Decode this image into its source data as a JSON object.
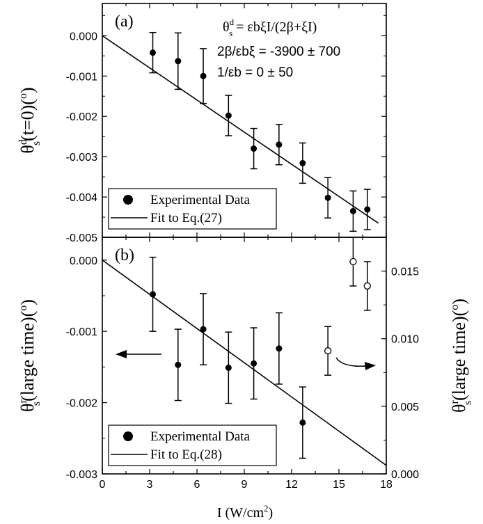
{
  "chart_data": [
    {
      "panel_label": "(a)",
      "type": "scatter",
      "xlim": [
        0,
        18
      ],
      "ylim": [
        -0.005,
        0.0008
      ],
      "yticks": [
        -0.005,
        -0.004,
        -0.003,
        -0.002,
        -0.001,
        0.0
      ],
      "ytick_labels": [
        "-0.005",
        "-0.004",
        "-0.003",
        "-0.002",
        "-0.001",
        "0.000"
      ],
      "ylabel": {
        "main": "θ",
        "sup": "d",
        "sub": "s",
        "rest": "(t=0)(",
        "unit_sup": "o",
        "close": ")"
      },
      "annotations": {
        "formula": {
          "lhs": "θ",
          "lhs_sup": "d",
          "lhs_sub": "s",
          "rhs": "= εbξI/(2β+ξI)"
        },
        "param1": "2β/εbξ = -3900 ± 700",
        "param2": "1/εb = 0 ± 50"
      },
      "series": [
        {
          "name": "Experimental Data",
          "marker": "filled-circle",
          "x": [
            3.2,
            4.8,
            6.4,
            8.0,
            9.6,
            11.2,
            12.7,
            14.3,
            15.9,
            16.8
          ],
          "y": [
            -0.00042,
            -0.00063,
            -0.001,
            -0.00198,
            -0.0028,
            -0.0027,
            -0.00316,
            -0.00402,
            -0.00435,
            -0.00431
          ],
          "yerr": [
            0.0005,
            0.0007,
            0.00068,
            0.0005,
            0.0005,
            0.0005,
            0.0005,
            0.0005,
            0.0005,
            0.0005
          ]
        }
      ],
      "fit": {
        "name": "Fit to Eq.(27)",
        "x": [
          0,
          17.5
        ],
        "y": [
          0.0,
          -0.00465
        ]
      },
      "legend": [
        "Experimental Data",
        "Fit to Eq.(27)"
      ],
      "legend_position": "bottom-left"
    },
    {
      "panel_label": "(b)",
      "type": "scatter",
      "xlim": [
        0,
        18
      ],
      "xticks": [
        0,
        3,
        6,
        9,
        12,
        15,
        18
      ],
      "xtick_labels": [
        "0",
        "3",
        "6",
        "9",
        "12",
        "15",
        "18"
      ],
      "xlabel": {
        "main": "I (W/cm",
        "sup": "2",
        "close": ")"
      },
      "ylim": [
        -0.003,
        0.00032
      ],
      "yticks": [
        -0.003,
        -0.002,
        -0.001,
        0.0
      ],
      "ytick_labels": [
        "-0.003",
        "-0.002",
        "-0.001",
        "0.000"
      ],
      "ylabel": {
        "main": "θ",
        "sup": "r",
        "sub": "s",
        "rest": "(large time)(",
        "unit_sup": "o",
        "close": ")"
      },
      "y2lim": [
        0.0,
        0.0175
      ],
      "y2ticks": [
        0.0,
        0.005,
        0.01,
        0.015
      ],
      "y2tick_labels": [
        "0.000",
        "0.005",
        "0.010",
        "0.015"
      ],
      "y2label": {
        "main": "θ",
        "sup": "r",
        "sub": "s",
        "rest": "(large time)(",
        "unit_sup": "o",
        "close": ")"
      },
      "series": [
        {
          "name": "Experimental Data",
          "marker": "filled-circle",
          "axis": "left",
          "x": [
            3.2,
            4.8,
            6.4,
            8.0,
            9.6,
            11.2,
            12.7
          ],
          "y": [
            -0.00048,
            -0.00147,
            -0.00097,
            -0.00151,
            -0.00145,
            -0.00124,
            -0.00228
          ],
          "yerr": [
            0.00052,
            0.0005,
            0.0005,
            0.0005,
            0.0005,
            0.0005,
            0.0005
          ]
        },
        {
          "marker": "open-circle",
          "axis": "right",
          "x": [
            14.3,
            15.9,
            16.8
          ],
          "y": [
            0.0091,
            0.0157,
            0.0139
          ],
          "yerr": [
            0.0018,
            0.0018,
            0.0018
          ]
        }
      ],
      "fit": {
        "name": "Fit to Eq.(28)",
        "x": [
          0,
          18
        ],
        "y": [
          0.0,
          -0.00288
        ]
      },
      "legend": [
        "Experimental Data",
        "Fit to Eq.(28)"
      ],
      "legend_position": "bottom-left"
    }
  ]
}
